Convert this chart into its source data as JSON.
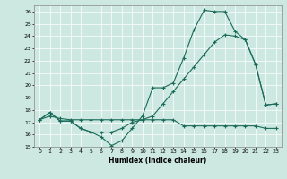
{
  "xlabel": "Humidex (Indice chaleur)",
  "xlim": [
    -0.5,
    23.5
  ],
  "ylim": [
    15,
    26.5
  ],
  "yticks": [
    15,
    16,
    17,
    18,
    19,
    20,
    21,
    22,
    23,
    24,
    25,
    26
  ],
  "xticks": [
    0,
    1,
    2,
    3,
    4,
    5,
    6,
    7,
    8,
    9,
    10,
    11,
    12,
    13,
    14,
    15,
    16,
    17,
    18,
    19,
    20,
    21,
    22,
    23
  ],
  "bg_color": "#cce8e0",
  "line_color": "#1a6b5a",
  "line1_x": [
    0,
    1,
    2,
    3,
    4,
    5,
    6,
    7,
    8,
    9,
    10,
    11,
    12,
    13,
    14,
    15,
    16,
    17,
    18,
    19,
    20,
    21,
    22,
    23
  ],
  "line1_y": [
    17.2,
    17.8,
    17.1,
    17.1,
    16.5,
    16.2,
    15.8,
    15.1,
    15.5,
    16.5,
    17.5,
    19.8,
    19.8,
    20.2,
    22.2,
    24.5,
    26.1,
    26.0,
    26.0,
    24.4,
    23.7,
    21.7,
    18.4,
    18.5
  ],
  "line2_x": [
    0,
    1,
    2,
    3,
    4,
    5,
    6,
    7,
    8,
    9,
    10,
    11,
    12,
    13,
    14,
    15,
    16,
    17,
    18,
    19,
    20,
    21,
    22,
    23
  ],
  "line2_y": [
    17.2,
    17.8,
    17.1,
    17.1,
    16.5,
    16.2,
    16.2,
    16.2,
    16.5,
    17.0,
    17.2,
    17.5,
    18.5,
    19.5,
    20.5,
    21.5,
    22.5,
    23.5,
    24.1,
    24.0,
    23.7,
    21.7,
    18.4,
    18.5
  ],
  "line3_x": [
    0,
    1,
    2,
    3,
    4,
    5,
    6,
    7,
    8,
    9,
    10,
    11,
    12,
    13,
    14,
    15,
    16,
    17,
    18,
    19,
    20,
    21,
    22,
    23
  ],
  "line3_y": [
    17.2,
    17.5,
    17.3,
    17.2,
    17.2,
    17.2,
    17.2,
    17.2,
    17.2,
    17.2,
    17.2,
    17.2,
    17.2,
    17.2,
    16.7,
    16.7,
    16.7,
    16.7,
    16.7,
    16.7,
    16.7,
    16.7,
    16.5,
    16.5
  ]
}
